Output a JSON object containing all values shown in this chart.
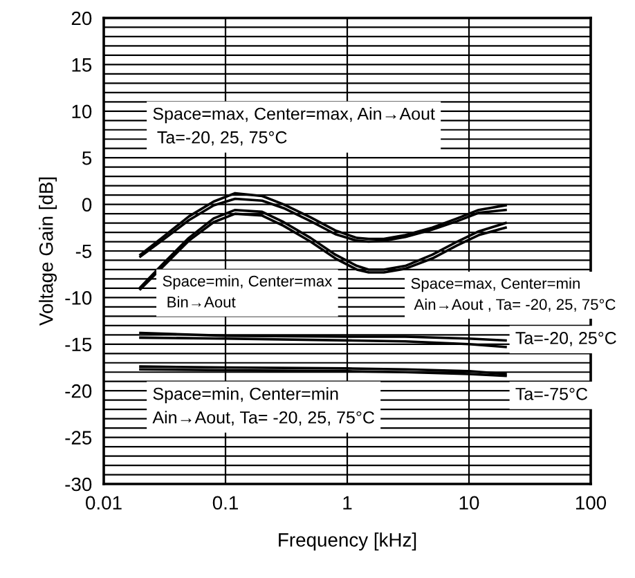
{
  "chart_data": {
    "type": "line",
    "xlabel": "Frequency [kHz]",
    "ylabel": "Voltage Gain [dB]",
    "log": "x",
    "xlim": [
      0.01,
      100
    ],
    "xticks": [
      0.01,
      0.1,
      1,
      10,
      100
    ],
    "ylim": [
      -30,
      20
    ],
    "yticks": [
      -30,
      {
        "value": -29,
        "label": null
      },
      {
        "value": -28,
        "label": null
      },
      {
        "value": -27,
        "label": null
      },
      {
        "value": -26,
        "label": null
      },
      -25,
      {
        "value": -24,
        "label": null
      },
      {
        "value": -23,
        "label": null
      },
      {
        "value": -22,
        "label": null
      },
      {
        "value": -21,
        "label": null
      },
      -20,
      {
        "value": -19,
        "label": null
      },
      {
        "value": -18,
        "label": null
      },
      {
        "value": -17,
        "label": null
      },
      {
        "value": -16,
        "label": null
      },
      -15,
      {
        "value": -14,
        "label": null
      },
      {
        "value": -13,
        "label": null
      },
      {
        "value": -12,
        "label": null
      },
      {
        "value": -11,
        "label": null
      },
      -10,
      {
        "value": -9,
        "label": null
      },
      {
        "value": -8,
        "label": null
      },
      {
        "value": -7,
        "label": null
      },
      {
        "value": -6,
        "label": null
      },
      -5,
      {
        "value": -4,
        "label": null
      },
      {
        "value": -3,
        "label": null
      },
      {
        "value": -2,
        "label": null
      },
      {
        "value": -1,
        "label": null
      },
      0,
      {
        "value": 1,
        "label": null
      },
      {
        "value": 2,
        "label": null
      },
      {
        "value": 3,
        "label": null
      },
      {
        "value": 4,
        "label": null
      },
      5,
      {
        "value": 6,
        "label": null
      },
      {
        "value": 7,
        "label": null
      },
      {
        "value": 8,
        "label": null
      },
      {
        "value": 9,
        "label": null
      },
      10,
      {
        "value": 11,
        "label": null
      },
      {
        "value": 12,
        "label": null
      },
      {
        "value": 13,
        "label": null
      },
      {
        "value": 14,
        "label": null
      },
      15,
      {
        "value": 16,
        "label": null
      },
      {
        "value": 17,
        "label": null
      },
      {
        "value": 18,
        "label": null
      },
      {
        "value": 19,
        "label": null
      },
      20
    ],
    "grid": true,
    "marker": "none",
    "line_style": "solid",
    "series": [
      {
        "color": "#000000",
        "x": [
          0.02,
          0.03,
          0.05,
          0.08,
          0.12,
          0.2,
          0.3,
          0.5,
          0.8,
          1.2,
          1.5,
          2,
          3,
          5,
          8,
          12,
          20
        ],
        "values": [
          -5.4,
          -3.6,
          -1.3,
          0.3,
          1.2,
          0.9,
          0,
          -1.4,
          -2.8,
          -3.6,
          -3.7,
          -3.7,
          -3.3,
          -2.5,
          -1.5,
          -0.6,
          -0.1
        ]
      },
      {
        "color": "#000000",
        "x": [
          0.02,
          0.03,
          0.05,
          0.08,
          0.12,
          0.2,
          0.3,
          0.5,
          0.8,
          1.2,
          1.5,
          2,
          3,
          5,
          8,
          12,
          20
        ],
        "values": [
          -5.6,
          -3.9,
          -1.7,
          -0.1,
          0.6,
          0.4,
          -0.4,
          -1.8,
          -3.2,
          -3.9,
          -4.0,
          -3.9,
          -3.5,
          -2.7,
          -1.8,
          -0.9,
          -0.6
        ]
      },
      {
        "color": "#000000",
        "x": [
          0.02,
          0.03,
          0.05,
          0.08,
          0.12,
          0.2,
          0.3,
          0.5,
          0.8,
          1.2,
          1.5,
          2,
          3,
          5,
          8,
          12,
          20
        ],
        "values": [
          -8.9,
          -6.5,
          -3.6,
          -1.5,
          -0.6,
          -0.8,
          -1.9,
          -3.6,
          -5.4,
          -6.6,
          -7.0,
          -7.0,
          -6.6,
          -5.4,
          -4.0,
          -2.9,
          -2.0
        ]
      },
      {
        "color": "#000000",
        "x": [
          0.02,
          0.03,
          0.05,
          0.08,
          0.12,
          0.2,
          0.3,
          0.5,
          0.8,
          1.2,
          1.5,
          2,
          3,
          5,
          8,
          12,
          20
        ],
        "values": [
          -9.1,
          -6.8,
          -3.9,
          -1.9,
          -1.0,
          -1.2,
          -2.3,
          -4.0,
          -5.8,
          -7.0,
          -7.3,
          -7.3,
          -6.9,
          -5.8,
          -4.4,
          -3.3,
          -2.5
        ]
      },
      {
        "color": "#000000",
        "x": [
          0.02,
          0.1,
          1,
          3,
          10,
          20
        ],
        "values": [
          -13.8,
          -14.1,
          -14.2,
          -14.2,
          -14.4,
          -14.6
        ]
      },
      {
        "color": "#000000",
        "x": [
          0.02,
          0.1,
          1,
          3,
          10,
          20
        ],
        "values": [
          -14.3,
          -14.4,
          -14.6,
          -14.7,
          -15.0,
          -15.3
        ]
      },
      {
        "color": "#000000",
        "x": [
          0.02,
          0.1,
          1,
          3,
          10,
          20
        ],
        "values": [
          -17.4,
          -17.5,
          -17.6,
          -17.7,
          -17.9,
          -18.2
        ]
      },
      {
        "color": "#000000",
        "x": [
          0.02,
          0.1,
          1,
          3,
          10,
          20
        ],
        "values": [
          -17.7,
          -17.8,
          -17.9,
          -18.0,
          -18.2,
          -18.4
        ]
      }
    ],
    "annotations": [
      "Space=max, Center=max, Ain→Aout\n Ta=-20, 25, 75°C",
      "Space=min, Center=max\n Bin→Aout",
      "Space=max, Center=min\n Ain→Aout , Ta= -20, 25, 75°C",
      "Ta=-20, 25°C",
      "Ta=-75°C",
      "Space=min, Center=min\nAin→Aout, Ta= -20, 25, 75°C"
    ]
  }
}
